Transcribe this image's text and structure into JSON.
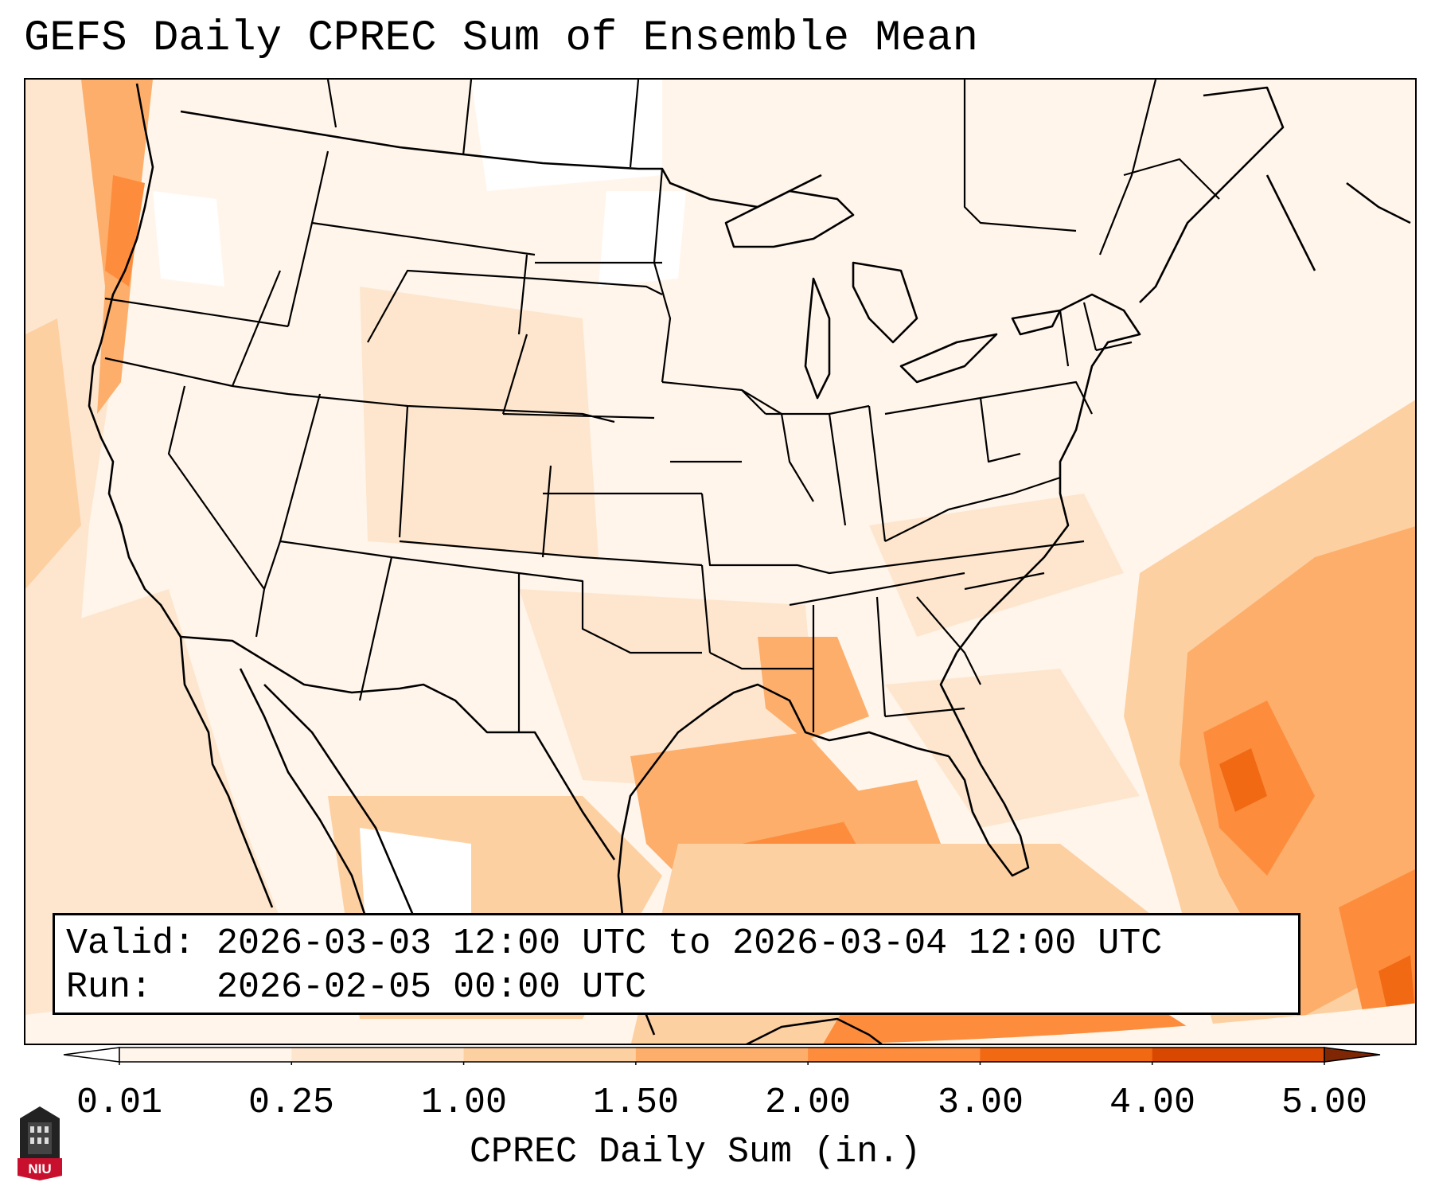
{
  "title": "GEFS Daily CPREC Sum of Ensemble Mean",
  "info": {
    "valid_line": "Valid: 2026-03-03 12:00 UTC to 2026-03-04 12:00 UTC",
    "run_line": "Run:   2026-02-05 00:00 UTC"
  },
  "colorbar": {
    "label": "CPREC Daily Sum (in.)",
    "ticks": [
      "0.01",
      "0.25",
      "1.00",
      "1.50",
      "2.00",
      "3.00",
      "4.00",
      "5.00"
    ],
    "colors": [
      "#fff5eb",
      "#fee6ce",
      "#fdd0a2",
      "#fdae6b",
      "#fd8d3c",
      "#f16913",
      "#d94801",
      "#a63603"
    ],
    "under_color": "#ffffff",
    "over_color": "#7f2704"
  },
  "map": {
    "variable": "CPREC daily sum",
    "projection_region": "CONUS",
    "basemap_features": [
      "state-borders",
      "coastlines",
      "great-lakes"
    ]
  },
  "logo": {
    "text": "NIU",
    "color": "#c8102e"
  }
}
